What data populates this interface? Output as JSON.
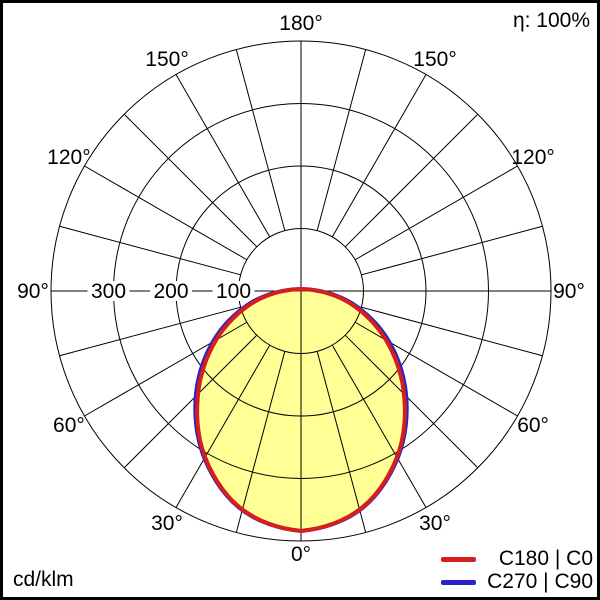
{
  "header": {
    "efficiency": "η: 100%"
  },
  "footer": {
    "unit": "cd/klm"
  },
  "legend": {
    "items": [
      {
        "label": "C180 | C0",
        "color": "#d71e1e"
      },
      {
        "label": "C270 | C90",
        "color": "#2823c8"
      }
    ]
  },
  "chart_data": {
    "type": "polar",
    "title": "Luminous intensity distribution curve (polar photometric diagram)",
    "value_unit": "cd/klm",
    "efficiency": "η: 100%",
    "orientation": "0° at bottom (nadir), 180° at top, symmetric left/right",
    "gamma_deg": [
      0,
      15,
      30,
      45,
      60,
      75,
      90,
      105,
      120,
      135,
      150,
      165,
      180
    ],
    "series": [
      {
        "name": "C180 | C0",
        "color": "#d71e1e",
        "values": [
          384,
          362,
          307,
          233,
          157,
          85,
          28,
          10,
          6,
          4,
          3,
          3,
          3
        ]
      },
      {
        "name": "C270 | C90",
        "color": "#2823c8",
        "values": [
          384,
          363,
          309,
          238,
          163,
          90,
          30,
          10,
          6,
          4,
          3,
          3,
          3
        ]
      }
    ],
    "fill_color": "#ffff96",
    "grid_color": "#000000",
    "radial_circles": [
      100,
      200,
      300,
      400
    ],
    "radial_tick_labels": [
      "100",
      "200",
      "300"
    ],
    "radial_tick_values": [
      100,
      200,
      300
    ],
    "radial_max": 400,
    "angle_labels": [
      "0°",
      "30°",
      "60°",
      "90°",
      "120°",
      "150°",
      "180°"
    ],
    "angle_label_step_deg": 30,
    "minor_angle_step_deg": 15
  }
}
